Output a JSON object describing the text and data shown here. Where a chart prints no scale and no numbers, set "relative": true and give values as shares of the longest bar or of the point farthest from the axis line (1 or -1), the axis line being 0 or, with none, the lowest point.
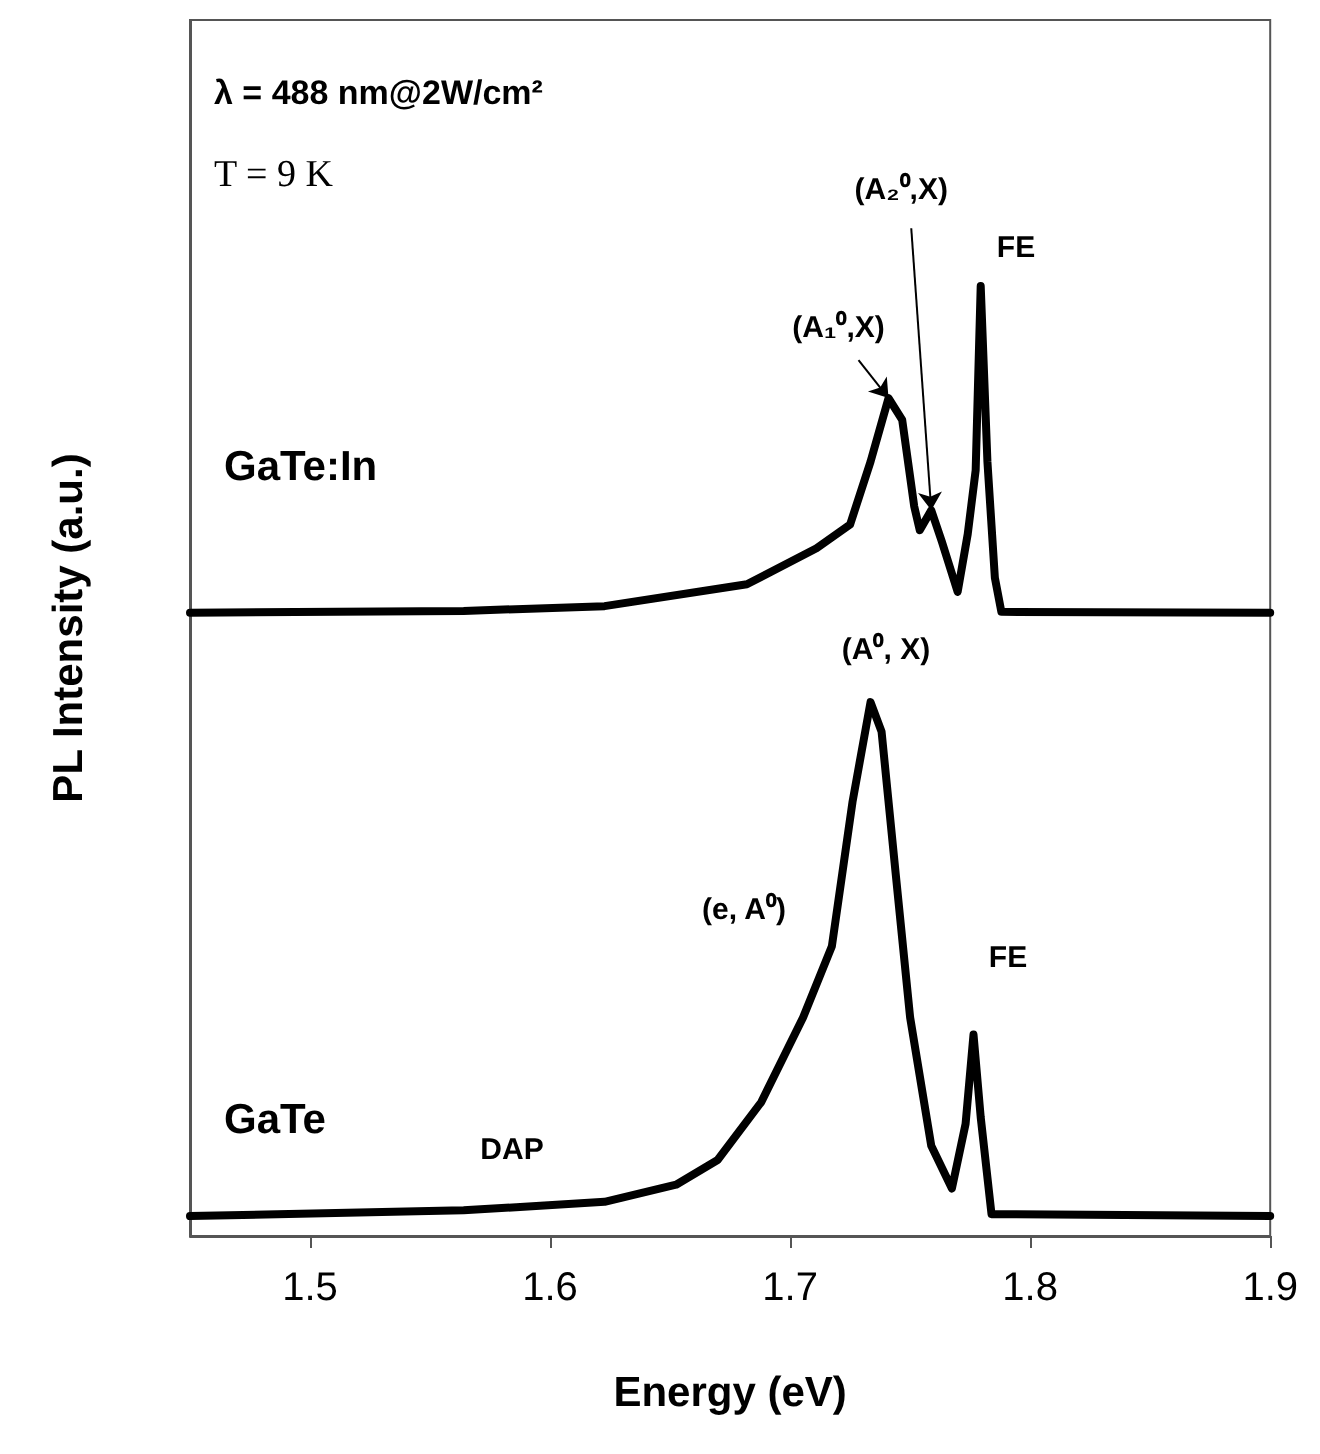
{
  "chart_data": {
    "type": "line",
    "xlabel": "Energy (eV)",
    "ylabel": "PL Intensity (a.u.)",
    "relative": true,
    "xlim": [
      1.45,
      1.9
    ],
    "xticks": [
      1.5,
      1.6,
      1.7,
      1.8,
      1.9
    ],
    "grid": false,
    "legend": false,
    "series": [
      {
        "name": "GaTe:In",
        "color": "#000000",
        "x": [
          1.45,
          1.564,
          1.6227,
          1.682,
          1.711,
          1.725,
          1.7335,
          1.741,
          1.7467,
          1.7517,
          1.754,
          1.7588,
          1.7632,
          1.7698,
          1.774,
          1.7773,
          1.7794,
          1.7822,
          1.7853,
          1.788,
          1.9
        ],
        "values": [
          0.656,
          0.658,
          0.663,
          0.686,
          0.724,
          0.749,
          0.815,
          0.882,
          0.859,
          0.768,
          0.743,
          0.764,
          0.731,
          0.678,
          0.739,
          0.806,
          1.0,
          0.815,
          0.693,
          0.657,
          0.656
        ]
      },
      {
        "name": "GaTe",
        "color": "#000000",
        "x": [
          1.45,
          1.564,
          1.6227,
          1.6525,
          1.6698,
          1.688,
          1.7054,
          1.7174,
          1.726,
          1.7335,
          1.7381,
          1.744,
          1.75,
          1.7588,
          1.7674,
          1.7731,
          1.7764,
          1.7794,
          1.7839,
          1.9
        ],
        "values": [
          0.021,
          0.027,
          0.036,
          0.054,
          0.08,
          0.141,
          0.23,
          0.305,
          0.457,
          0.562,
          0.531,
          0.381,
          0.23,
          0.095,
          0.05,
          0.118,
          0.212,
          0.125,
          0.023,
          0.021
        ]
      }
    ],
    "annotations": [
      "λ = 488 nm@2W/cm²",
      "T = 9 K",
      {
        "text": "(A₁⁰,X)",
        "x": 1.741,
        "y": 0.882
      },
      {
        "text": "(A₂⁰,X)",
        "x": 1.7588,
        "y": 0.764
      },
      "FE",
      "(A⁰, X)",
      "(e, A⁰)",
      "FE",
      "DAP"
    ]
  }
}
